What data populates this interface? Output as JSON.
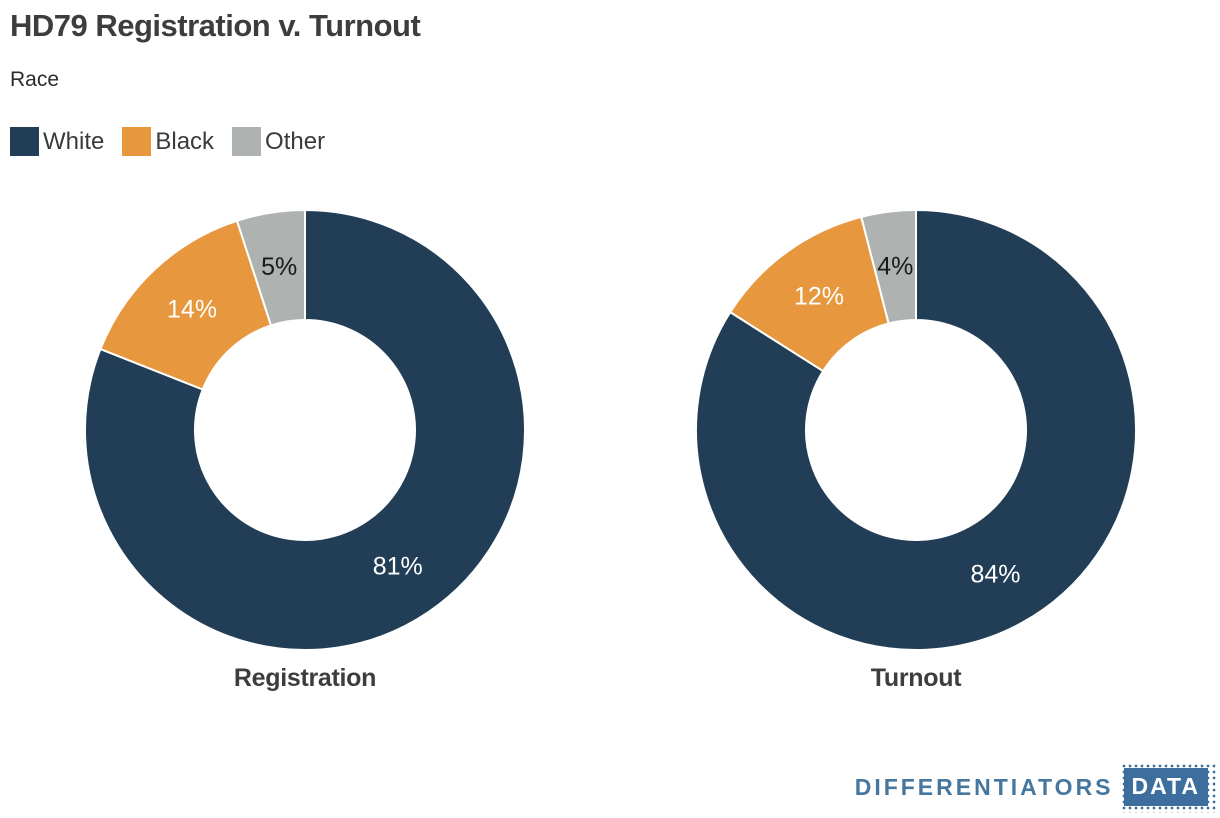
{
  "header": {
    "title": "HD79 Registration v. Turnout",
    "subtitle": "Race"
  },
  "legend": [
    {
      "label": "White",
      "color": "#223e57"
    },
    {
      "label": "Black",
      "color": "#e7983e"
    },
    {
      "label": "Other",
      "color": "#aeb2b1"
    }
  ],
  "chart_data": [
    {
      "type": "pie",
      "subtype": "donut",
      "title": "Registration",
      "categories": [
        "White",
        "Black",
        "Other"
      ],
      "values": [
        81,
        14,
        5
      ],
      "value_labels": [
        "81%",
        "14%",
        "5%"
      ],
      "unit": "percent",
      "colors": [
        "#223e57",
        "#e7983e",
        "#aeb2b1"
      ],
      "label_colors": [
        "#ffffff",
        "#ffffff",
        "#1a1a1a"
      ],
      "start_angle_deg": 0,
      "direction": "clockwise",
      "inner_radius_ratio": 0.5,
      "legend_position": "top-left"
    },
    {
      "type": "pie",
      "subtype": "donut",
      "title": "Turnout",
      "categories": [
        "White",
        "Black",
        "Other"
      ],
      "values": [
        84,
        12,
        4
      ],
      "value_labels": [
        "84%",
        "12%",
        "4%"
      ],
      "unit": "percent",
      "colors": [
        "#223e57",
        "#e7983e",
        "#aeb2b1"
      ],
      "label_colors": [
        "#ffffff",
        "#ffffff",
        "#1a1a1a"
      ],
      "start_angle_deg": 0,
      "direction": "clockwise",
      "inner_radius_ratio": 0.5,
      "legend_position": "top-left"
    }
  ],
  "footer": {
    "brand": "DIFFERENTIATORS",
    "badge": "DATA",
    "brand_color": "#45779f",
    "badge_bg": "#3d6e9e",
    "badge_text_color": "#ffffff"
  }
}
